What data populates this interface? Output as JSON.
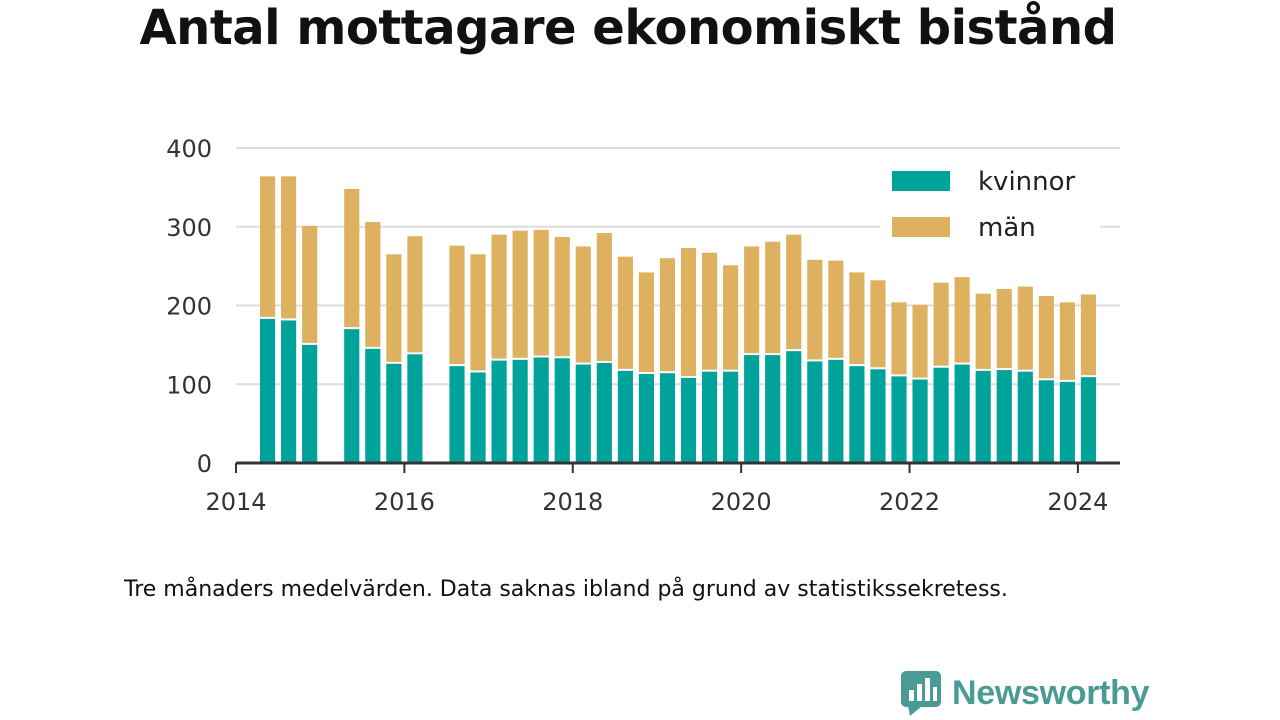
{
  "chart_data": {
    "type": "bar",
    "stacked": true,
    "title": "Antal mottagare ekonomiskt bistånd",
    "note": "Tre månaders medelvärden. Data saknas ibland på grund av statistikssekretess.",
    "xlabel": "",
    "ylabel": "",
    "ylim": [
      0,
      400
    ],
    "yticks": [
      0,
      100,
      200,
      300,
      400
    ],
    "xlim": [
      2014.0,
      2024.5
    ],
    "xticks": [
      2014,
      2016,
      2018,
      2020,
      2022,
      2024
    ],
    "grid": true,
    "legend_position": "top-right",
    "x": [
      2014.375,
      2014.625,
      2014.875,
      2015.375,
      2015.625,
      2015.875,
      2016.125,
      2016.625,
      2016.875,
      2017.125,
      2017.375,
      2017.625,
      2017.875,
      2018.125,
      2018.375,
      2018.625,
      2018.875,
      2019.125,
      2019.375,
      2019.625,
      2019.875,
      2020.125,
      2020.375,
      2020.625,
      2020.875,
      2021.125,
      2021.375,
      2021.625,
      2021.875,
      2022.125,
      2022.375,
      2022.625,
      2022.875,
      2023.125,
      2023.375,
      2023.625,
      2023.875,
      2024.125
    ],
    "series": [
      {
        "name": "kvinnor",
        "color": "#00a39a",
        "values": [
          183,
          181,
          150,
          170,
          145,
          126,
          138,
          123,
          115,
          130,
          131,
          134,
          133,
          125,
          127,
          117,
          113,
          114,
          108,
          116,
          116,
          137,
          137,
          142,
          129,
          131,
          123,
          119,
          110,
          106,
          121,
          125,
          117,
          118,
          116,
          105,
          103,
          109
        ]
      },
      {
        "name": "män",
        "color": "#ddb15f",
        "values": [
          181,
          183,
          151,
          178,
          161,
          139,
          150,
          153,
          150,
          160,
          164,
          162,
          154,
          150,
          165,
          145,
          129,
          146,
          165,
          151,
          135,
          138,
          144,
          148,
          129,
          126,
          119,
          113,
          94,
          95,
          108,
          111,
          98,
          103,
          108,
          107,
          101,
          105
        ]
      }
    ]
  },
  "brand": {
    "name": "Newsworthy",
    "icon": "bar-chart-speech-bubble-icon",
    "color": "#4a9b96"
  }
}
